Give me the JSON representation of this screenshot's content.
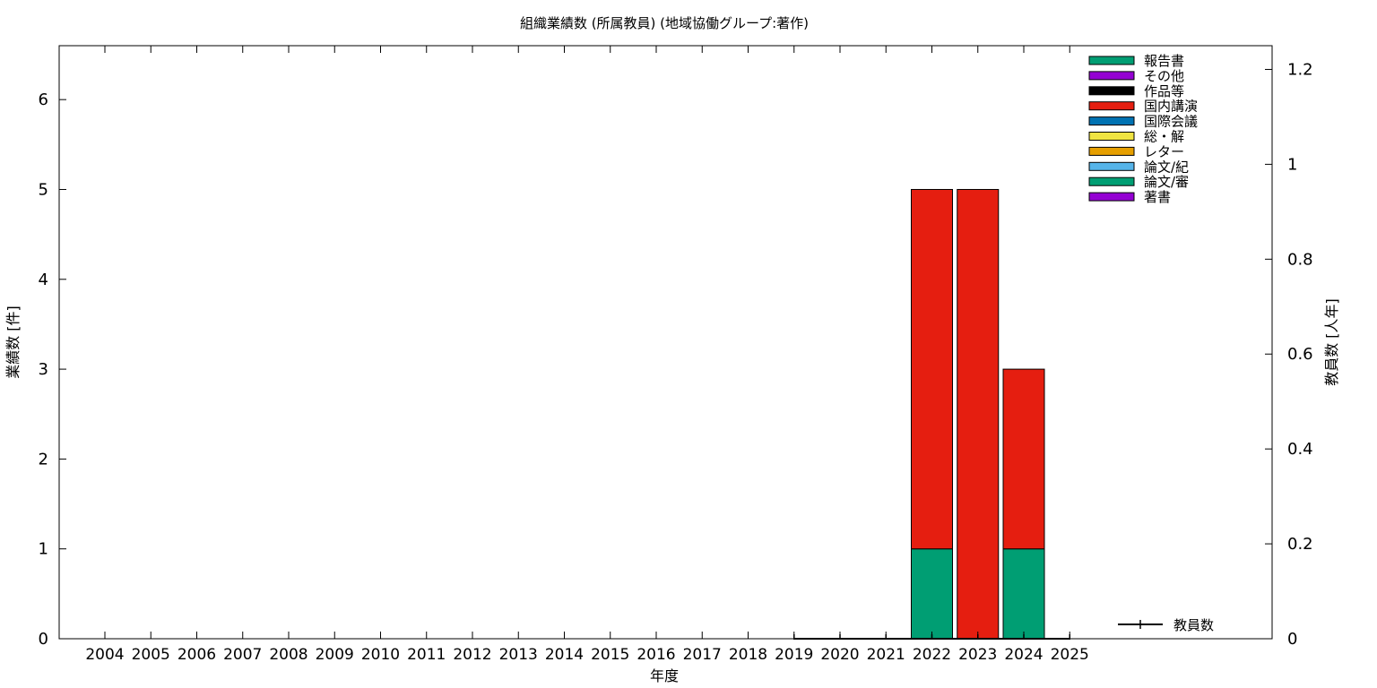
{
  "chart_data": {
    "type": "bar",
    "stacked": true,
    "title": "組織業績数 (所属教員) (地域協働グループ:著作)",
    "xlabel": "年度",
    "ylabel": "業績数 [件]",
    "y2label": "教員数 [人年]",
    "ylim": [
      0,
      6.6
    ],
    "y2lim": [
      0,
      1.25
    ],
    "yticks": [
      "0",
      "1",
      "2",
      "3",
      "4",
      "5",
      "6"
    ],
    "y2ticks": [
      "0",
      "0.2",
      "0.4",
      "0.6",
      "0.8",
      "1",
      "1.2"
    ],
    "categories": [
      "2004",
      "2005",
      "2006",
      "2007",
      "2008",
      "2009",
      "2010",
      "2011",
      "2012",
      "2013",
      "2014",
      "2015",
      "2016",
      "2017",
      "2018",
      "2019",
      "2020",
      "2021",
      "2022",
      "2023",
      "2024",
      "2025"
    ],
    "series": [
      {
        "name": "報告書",
        "color": "#009e73",
        "values": [
          0,
          0,
          0,
          0,
          0,
          0,
          0,
          0,
          0,
          0,
          0,
          0,
          0,
          0,
          0,
          0,
          0,
          0,
          1,
          0,
          1,
          0
        ]
      },
      {
        "name": "その他",
        "color": "#9400d3",
        "values": [
          0,
          0,
          0,
          0,
          0,
          0,
          0,
          0,
          0,
          0,
          0,
          0,
          0,
          0,
          0,
          0,
          0,
          0,
          0,
          0,
          0,
          0
        ]
      },
      {
        "name": "作品等",
        "color": "#000000",
        "values": [
          0,
          0,
          0,
          0,
          0,
          0,
          0,
          0,
          0,
          0,
          0,
          0,
          0,
          0,
          0,
          0,
          0,
          0,
          0,
          0,
          0,
          0
        ]
      },
      {
        "name": "国内講演",
        "color": "#e51e10",
        "values": [
          0,
          0,
          0,
          0,
          0,
          0,
          0,
          0,
          0,
          0,
          0,
          0,
          0,
          0,
          0,
          0,
          0,
          0,
          4,
          5,
          2,
          0
        ]
      },
      {
        "name": "国際会議",
        "color": "#0072b2",
        "values": [
          0,
          0,
          0,
          0,
          0,
          0,
          0,
          0,
          0,
          0,
          0,
          0,
          0,
          0,
          0,
          0,
          0,
          0,
          0,
          0,
          0,
          0
        ]
      },
      {
        "name": "総・解",
        "color": "#f0e442",
        "values": [
          0,
          0,
          0,
          0,
          0,
          0,
          0,
          0,
          0,
          0,
          0,
          0,
          0,
          0,
          0,
          0,
          0,
          0,
          0,
          0,
          0,
          0
        ]
      },
      {
        "name": "レター",
        "color": "#e69f00",
        "values": [
          0,
          0,
          0,
          0,
          0,
          0,
          0,
          0,
          0,
          0,
          0,
          0,
          0,
          0,
          0,
          0,
          0,
          0,
          0,
          0,
          0,
          0
        ]
      },
      {
        "name": "論文/紀",
        "color": "#56b4e9",
        "values": [
          0,
          0,
          0,
          0,
          0,
          0,
          0,
          0,
          0,
          0,
          0,
          0,
          0,
          0,
          0,
          0,
          0,
          0,
          0,
          0,
          0,
          0
        ]
      },
      {
        "name": "論文/審",
        "color": "#009e73",
        "values": [
          0,
          0,
          0,
          0,
          0,
          0,
          0,
          0,
          0,
          0,
          0,
          0,
          0,
          0,
          0,
          0,
          0,
          0,
          0,
          0,
          0,
          0
        ]
      },
      {
        "name": "著書",
        "color": "#9400d3",
        "values": [
          0,
          0,
          0,
          0,
          0,
          0,
          0,
          0,
          0,
          0,
          0,
          0,
          0,
          0,
          0,
          0,
          0,
          0,
          0,
          0,
          0,
          0
        ]
      }
    ],
    "line_series": {
      "name": "教員数",
      "axis": "y2",
      "color": "#000000",
      "x": [
        "2019",
        "2020",
        "2021",
        "2022",
        "2023",
        "2024",
        "2025"
      ],
      "values": [
        0,
        0,
        0,
        0,
        0,
        0,
        0
      ]
    },
    "legend_position": "top-right"
  }
}
